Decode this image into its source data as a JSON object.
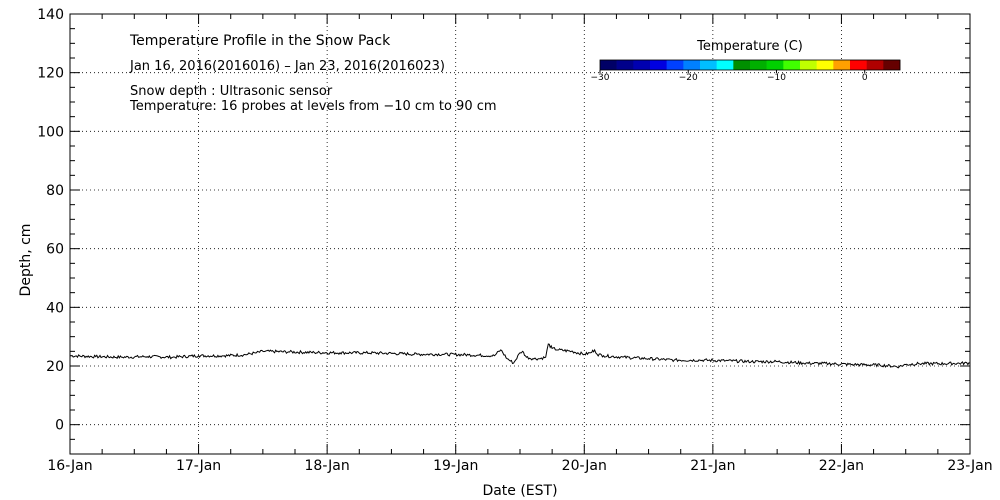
{
  "chart_data": {
    "type": "line",
    "title": "Temperature Profile in the Snow Pack",
    "date_range": "Jan 16, 2016(2016016) – Jan 23, 2016(2016023)",
    "notes": [
      "Snow depth : Ultrasonic sensor",
      "Temperature: 16 probes at levels from −10 cm to 90 cm"
    ],
    "xlabel": "Date (EST)",
    "ylabel": "Depth, cm",
    "xlim": [
      0,
      7
    ],
    "ylim": [
      -10,
      140
    ],
    "grid": true,
    "x_ticks": [
      {
        "value": 0,
        "label": "16-Jan"
      },
      {
        "value": 1,
        "label": "17-Jan"
      },
      {
        "value": 2,
        "label": "18-Jan"
      },
      {
        "value": 3,
        "label": "19-Jan"
      },
      {
        "value": 4,
        "label": "20-Jan"
      },
      {
        "value": 5,
        "label": "21-Jan"
      },
      {
        "value": 6,
        "label": "22-Jan"
      },
      {
        "value": 7,
        "label": "23-Jan"
      }
    ],
    "y_ticks": [
      0,
      20,
      40,
      60,
      80,
      100,
      120,
      140
    ],
    "colorbar": {
      "title": "Temperature (C)",
      "range": [
        -30,
        4
      ],
      "ticks": [
        {
          "value": -30,
          "label": "−30"
        },
        {
          "value": -20,
          "label": "−20"
        },
        {
          "value": -10,
          "label": "−10"
        },
        {
          "value": 0,
          "label": "0"
        }
      ],
      "colors": [
        "#000066",
        "#00008b",
        "#0000b0",
        "#0000e0",
        "#0040ff",
        "#0080ff",
        "#00bfff",
        "#00ffff",
        "#008f00",
        "#00b000",
        "#00d000",
        "#40ff00",
        "#c0ff00",
        "#ffff00",
        "#ffa000",
        "#ff0000",
        "#b00000",
        "#660000"
      ]
    },
    "series": [
      {
        "name": "Snow depth",
        "color": "#000000",
        "x": [
          0,
          0.2,
          0.4,
          0.6,
          0.8,
          1.0,
          1.2,
          1.35,
          1.45,
          1.5,
          1.7,
          1.9,
          2.1,
          2.3,
          2.5,
          2.7,
          2.9,
          3.1,
          3.3,
          3.35,
          3.4,
          3.45,
          3.5,
          3.52,
          3.55,
          3.6,
          3.65,
          3.7,
          3.72,
          3.75,
          3.8,
          3.9,
          4.0,
          4.05,
          4.08,
          4.1,
          4.15,
          4.3,
          4.5,
          4.7,
          4.9,
          5.1,
          5.3,
          5.5,
          5.7,
          5.9,
          6.1,
          6.3,
          6.45,
          6.5,
          6.6,
          6.8,
          7.0
        ],
        "y": [
          23.5,
          23.2,
          23.0,
          23.2,
          23.0,
          23.5,
          23.5,
          23.8,
          24.5,
          25.0,
          24.8,
          24.6,
          24.5,
          24.5,
          24.3,
          24.0,
          24.0,
          23.8,
          23.5,
          25.5,
          22.5,
          21.0,
          24.5,
          25.0,
          23.0,
          22.5,
          22.5,
          23.0,
          27.5,
          26.0,
          25.5,
          25.0,
          24.0,
          24.5,
          25.5,
          24.0,
          23.5,
          23.0,
          22.5,
          22.0,
          22.0,
          21.8,
          21.5,
          21.5,
          21.0,
          20.8,
          20.5,
          20.3,
          19.8,
          20.5,
          20.8,
          20.8,
          21.0
        ]
      }
    ]
  }
}
